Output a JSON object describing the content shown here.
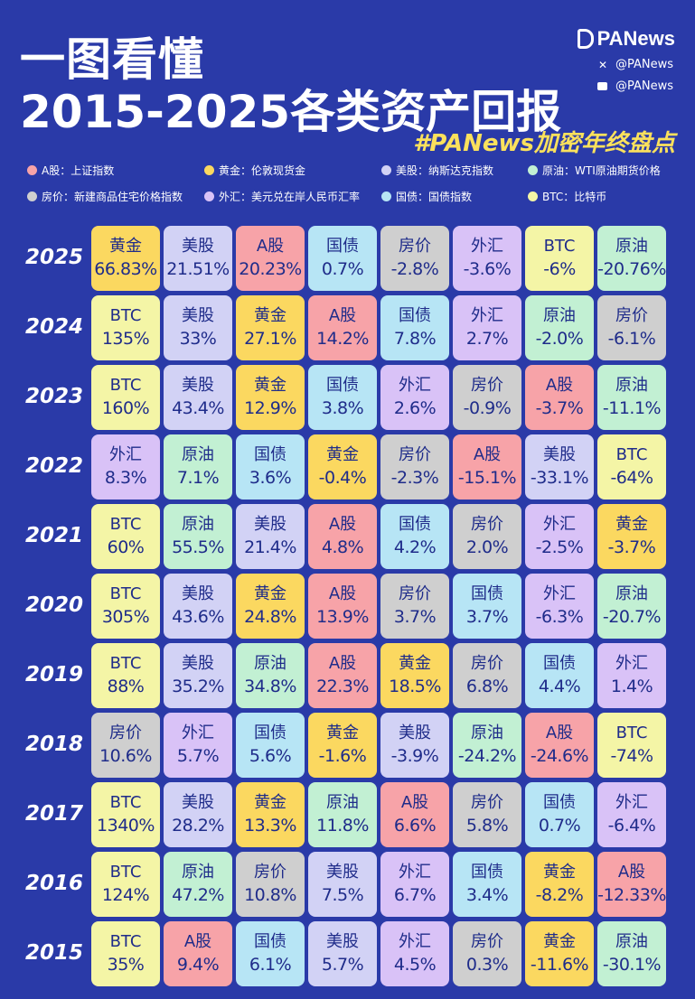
{
  "header": {
    "title_line1": "一图看懂",
    "title_line2": "2015-2025各类资产回报",
    "brand": "PANews",
    "social_x": "@PANews",
    "social_m": "@PANews",
    "hashtag": "#PANews加密年终盘点"
  },
  "colors": {
    "background": "#2a3aa8",
    "text_on_cell": "#1f2c8a",
    "hashtag": "#fbe15c"
  },
  "legend": [
    {
      "label": "A股：上证指数",
      "asset": "A股",
      "color": "#f7a3a8"
    },
    {
      "label": "黄金：伦敦现货金",
      "asset": "黄金",
      "color": "#fbd860"
    },
    {
      "label": "美股：纳斯达克指数",
      "asset": "美股",
      "color": "#d2d2f5"
    },
    {
      "label": "原油：WTI原油期货价格",
      "asset": "原油",
      "color": "#c2f0d3"
    },
    {
      "label": "房价：新建商品住宅价格指数",
      "asset": "房价",
      "color": "#cfcfcf"
    },
    {
      "label": "外汇：美元兑在岸人民币汇率",
      "asset": "外汇",
      "color": "#d9c2f7"
    },
    {
      "label": "国债：国债指数",
      "asset": "国债",
      "color": "#b7e5f5"
    },
    {
      "label": "BTC：比特币",
      "asset": "BTC",
      "color": "#f4f5a6"
    }
  ],
  "chart_data": {
    "type": "table",
    "title": "2015-2025各类资产回报",
    "rows": [
      {
        "year": "2025",
        "cells": [
          {
            "asset": "黄金",
            "value": "66.83%"
          },
          {
            "asset": "美股",
            "value": "21.51%"
          },
          {
            "asset": "A股",
            "value": "20.23%"
          },
          {
            "asset": "国债",
            "value": "0.7%"
          },
          {
            "asset": "房价",
            "value": "-2.8%"
          },
          {
            "asset": "外汇",
            "value": "-3.6%"
          },
          {
            "asset": "BTC",
            "value": "-6%"
          },
          {
            "asset": "原油",
            "value": "-20.76%"
          }
        ]
      },
      {
        "year": "2024",
        "cells": [
          {
            "asset": "BTC",
            "value": "135%"
          },
          {
            "asset": "美股",
            "value": "33%"
          },
          {
            "asset": "黄金",
            "value": "27.1%"
          },
          {
            "asset": "A股",
            "value": "14.2%"
          },
          {
            "asset": "国债",
            "value": "7.8%"
          },
          {
            "asset": "外汇",
            "value": "2.7%"
          },
          {
            "asset": "原油",
            "value": "-2.0%"
          },
          {
            "asset": "房价",
            "value": "-6.1%"
          }
        ]
      },
      {
        "year": "2023",
        "cells": [
          {
            "asset": "BTC",
            "value": "160%"
          },
          {
            "asset": "美股",
            "value": "43.4%"
          },
          {
            "asset": "黄金",
            "value": "12.9%"
          },
          {
            "asset": "国债",
            "value": "3.8%"
          },
          {
            "asset": "外汇",
            "value": "2.6%"
          },
          {
            "asset": "房价",
            "value": "-0.9%"
          },
          {
            "asset": "A股",
            "value": "-3.7%"
          },
          {
            "asset": "原油",
            "value": "-11.1%"
          }
        ]
      },
      {
        "year": "2022",
        "cells": [
          {
            "asset": "外汇",
            "value": "8.3%"
          },
          {
            "asset": "原油",
            "value": "7.1%"
          },
          {
            "asset": "国债",
            "value": "3.6%"
          },
          {
            "asset": "黄金",
            "value": "-0.4%"
          },
          {
            "asset": "房价",
            "value": "-2.3%"
          },
          {
            "asset": "A股",
            "value": "-15.1%"
          },
          {
            "asset": "美股",
            "value": "-33.1%"
          },
          {
            "asset": "BTC",
            "value": "-64%"
          }
        ]
      },
      {
        "year": "2021",
        "cells": [
          {
            "asset": "BTC",
            "value": "60%"
          },
          {
            "asset": "原油",
            "value": "55.5%"
          },
          {
            "asset": "美股",
            "value": "21.4%"
          },
          {
            "asset": "A股",
            "value": "4.8%"
          },
          {
            "asset": "国债",
            "value": "4.2%"
          },
          {
            "asset": "房价",
            "value": "2.0%"
          },
          {
            "asset": "外汇",
            "value": "-2.5%"
          },
          {
            "asset": "黄金",
            "value": "-3.7%"
          }
        ]
      },
      {
        "year": "2020",
        "cells": [
          {
            "asset": "BTC",
            "value": "305%"
          },
          {
            "asset": "美股",
            "value": "43.6%"
          },
          {
            "asset": "黄金",
            "value": "24.8%"
          },
          {
            "asset": "A股",
            "value": "13.9%"
          },
          {
            "asset": "房价",
            "value": "3.7%"
          },
          {
            "asset": "国债",
            "value": "3.7%"
          },
          {
            "asset": "外汇",
            "value": "-6.3%"
          },
          {
            "asset": "原油",
            "value": "-20.7%"
          }
        ]
      },
      {
        "year": "2019",
        "cells": [
          {
            "asset": "BTC",
            "value": "88%"
          },
          {
            "asset": "美股",
            "value": "35.2%"
          },
          {
            "asset": "原油",
            "value": "34.8%"
          },
          {
            "asset": "A股",
            "value": "22.3%"
          },
          {
            "asset": "黄金",
            "value": "18.5%"
          },
          {
            "asset": "房价",
            "value": "6.8%"
          },
          {
            "asset": "国债",
            "value": "4.4%"
          },
          {
            "asset": "外汇",
            "value": "1.4%"
          }
        ]
      },
      {
        "year": "2018",
        "cells": [
          {
            "asset": "房价",
            "value": "10.6%"
          },
          {
            "asset": "外汇",
            "value": "5.7%"
          },
          {
            "asset": "国债",
            "value": "5.6%"
          },
          {
            "asset": "黄金",
            "value": "-1.6%"
          },
          {
            "asset": "美股",
            "value": "-3.9%"
          },
          {
            "asset": "原油",
            "value": "-24.2%"
          },
          {
            "asset": "A股",
            "value": "-24.6%"
          },
          {
            "asset": "BTC",
            "value": "-74%"
          }
        ]
      },
      {
        "year": "2017",
        "cells": [
          {
            "asset": "BTC",
            "value": "1340%"
          },
          {
            "asset": "美股",
            "value": "28.2%"
          },
          {
            "asset": "黄金",
            "value": "13.3%"
          },
          {
            "asset": "原油",
            "value": "11.8%"
          },
          {
            "asset": "A股",
            "value": "6.6%"
          },
          {
            "asset": "房价",
            "value": "5.8%"
          },
          {
            "asset": "国债",
            "value": "0.7%"
          },
          {
            "asset": "外汇",
            "value": "-6.4%"
          }
        ]
      },
      {
        "year": "2016",
        "cells": [
          {
            "asset": "BTC",
            "value": "124%"
          },
          {
            "asset": "原油",
            "value": "47.2%"
          },
          {
            "asset": "房价",
            "value": "10.8%"
          },
          {
            "asset": "美股",
            "value": "7.5%"
          },
          {
            "asset": "外汇",
            "value": "6.7%"
          },
          {
            "asset": "国债",
            "value": "3.4%"
          },
          {
            "asset": "黄金",
            "value": "-8.2%"
          },
          {
            "asset": "A股",
            "value": "-12.33%"
          }
        ]
      },
      {
        "year": "2015",
        "cells": [
          {
            "asset": "BTC",
            "value": "35%"
          },
          {
            "asset": "A股",
            "value": "9.4%"
          },
          {
            "asset": "国债",
            "value": "6.1%"
          },
          {
            "asset": "美股",
            "value": "5.7%"
          },
          {
            "asset": "外汇",
            "value": "4.5%"
          },
          {
            "asset": "房价",
            "value": "0.3%"
          },
          {
            "asset": "黄金",
            "value": "-11.6%"
          },
          {
            "asset": "原油",
            "value": "-30.1%"
          }
        ]
      }
    ]
  }
}
